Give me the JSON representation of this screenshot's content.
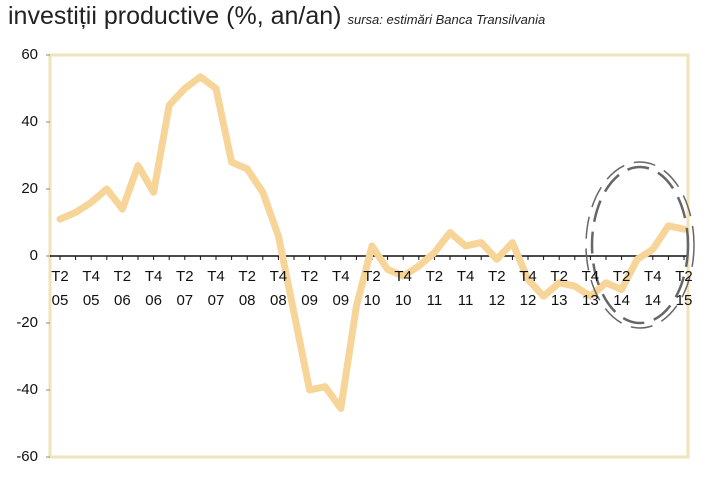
{
  "chart_data": {
    "type": "line",
    "title": "investiții productive (%, an/an)",
    "subtitle": "sursa: estimări Banca Transilvania",
    "categories": [
      "T2 05",
      null,
      "T4 05",
      null,
      "T2 06",
      null,
      "T4 06",
      null,
      "T2 07",
      null,
      "T4 07",
      null,
      "T2 08",
      null,
      "T4 08",
      null,
      "T2 09",
      null,
      "T4 09",
      null,
      "T2 10",
      null,
      "T4 10",
      null,
      "T2 11",
      null,
      "T4 11",
      null,
      "T2 12",
      null,
      "T4 12",
      null,
      "T2 13",
      null,
      "T4 13",
      null,
      "T2 14",
      null,
      "T4 14",
      null,
      "T2 15"
    ],
    "series": [
      {
        "name": "investiții productive",
        "color": "#f7d598",
        "values": [
          11,
          13,
          16,
          20,
          14,
          27,
          19,
          45,
          50,
          53.5,
          50,
          28,
          26,
          19,
          6,
          -17,
          -40,
          -39,
          -45.5,
          -15,
          3,
          -4,
          -6,
          -3,
          1,
          7,
          3,
          4,
          -1,
          4,
          -7,
          -12,
          -8,
          -9,
          -12,
          -8,
          -10,
          -1,
          2,
          9,
          8
        ]
      }
    ],
    "ylim": [
      -60,
      60
    ],
    "yticks": [
      60,
      40,
      20,
      0,
      -20,
      -40,
      -60
    ],
    "grid": false
  }
}
